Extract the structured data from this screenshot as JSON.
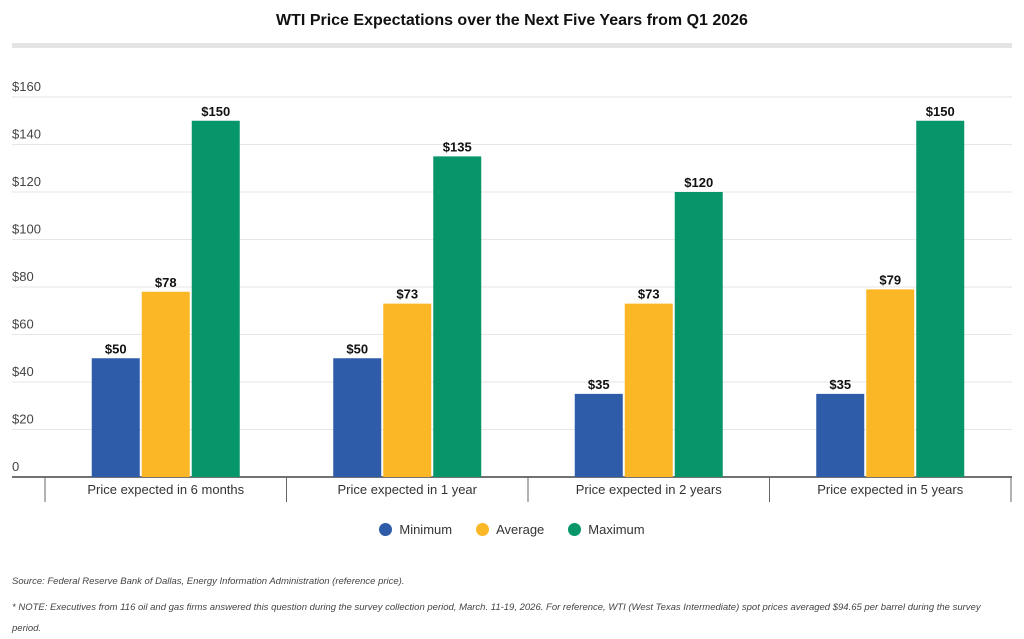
{
  "chart_data": {
    "type": "bar",
    "title": "WTI Price Expectations over the Next Five Years from Q1 2026",
    "categories": [
      "Price expected in 6 months",
      "Price expected in 1 year",
      "Price expected in 2 years",
      "Price expected in 5 years"
    ],
    "series": [
      {
        "name": "Minimum",
        "color": "#2e5ca8",
        "values": [
          50,
          50,
          35,
          35
        ]
      },
      {
        "name": "Average",
        "color": "#fbb726",
        "values": [
          78,
          73,
          73,
          79
        ]
      },
      {
        "name": "Maximum",
        "color": "#079669",
        "values": [
          150,
          135,
          120,
          150
        ]
      }
    ],
    "ylim": [
      0,
      160
    ],
    "yticks": [
      0,
      20,
      40,
      60,
      80,
      100,
      120,
      140,
      160
    ],
    "ytick_labels": [
      "0",
      "$20",
      "$40",
      "$60",
      "$80",
      "$100",
      "$120",
      "$140",
      "$160"
    ],
    "value_prefix": "$",
    "grid": true,
    "legend": "bottom"
  },
  "notes": {
    "source": "Source: Federal Reserve Bank of Dallas, Energy Information Administration (reference price).",
    "note": "* NOTE: Executives from 116 oil and gas firms answered this question during the survey collection period, March. 11-19, 2026. For reference, WTI (West Texas Intermediate) spot prices averaged $94.65 per barrel during the survey period."
  }
}
